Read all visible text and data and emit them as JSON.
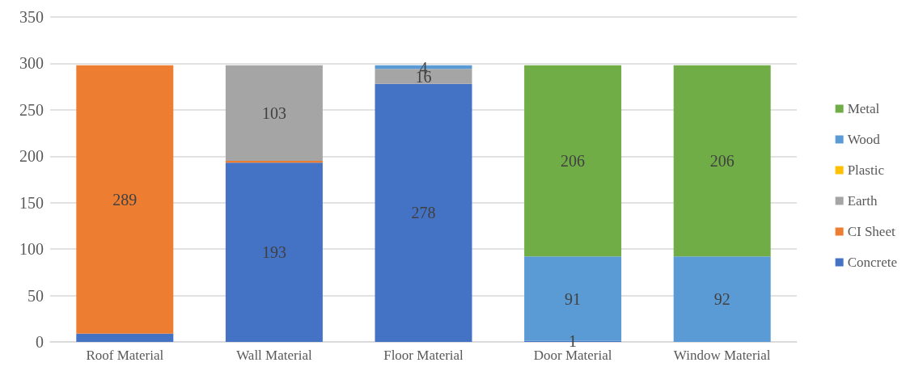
{
  "chart_data": {
    "type": "bar",
    "stacked": true,
    "categories": [
      "Roof Material",
      "Wall Material",
      "Floor Material",
      "Door Material",
      "Window Material"
    ],
    "series": [
      {
        "name": "Concrete",
        "color": "#4472c4",
        "values": [
          9,
          193,
          278,
          1,
          0
        ],
        "value_labels": [
          null,
          "193",
          "278",
          "1",
          null
        ]
      },
      {
        "name": "CI Sheet",
        "color": "#ed7d31",
        "values": [
          289,
          2,
          0,
          0,
          0
        ],
        "value_labels": [
          "289",
          null,
          null,
          null,
          null
        ]
      },
      {
        "name": "Earth",
        "color": "#a5a5a5",
        "values": [
          0,
          103,
          16,
          0,
          0
        ],
        "value_labels": [
          null,
          "103",
          "16",
          null,
          null
        ]
      },
      {
        "name": "Plastic",
        "color": "#ffc000",
        "values": [
          0,
          0,
          0,
          0,
          0
        ],
        "value_labels": [
          null,
          null,
          null,
          null,
          null
        ]
      },
      {
        "name": "Wood",
        "color": "#5b9bd5",
        "values": [
          0,
          0,
          4,
          91,
          92
        ],
        "value_labels": [
          null,
          null,
          "4",
          "91",
          "92"
        ]
      },
      {
        "name": "Metal",
        "color": "#70ad47",
        "values": [
          0,
          0,
          0,
          206,
          206
        ],
        "value_labels": [
          null,
          null,
          null,
          "206",
          "206"
        ]
      }
    ],
    "ylim": [
      0,
      350
    ],
    "yticks": [
      0,
      50,
      100,
      150,
      200,
      250,
      300,
      350
    ],
    "grid": "y",
    "legend": "right"
  }
}
